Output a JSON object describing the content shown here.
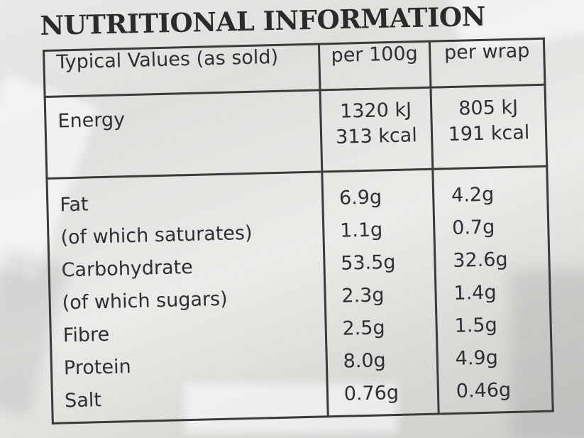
{
  "heading": "NUTRITIONAL INFORMATION",
  "table": {
    "header": {
      "label": "Typical Values (as sold)",
      "per100": "per 100g",
      "perwrap": "per wrap"
    },
    "energy": {
      "label": "Energy",
      "per100_kj": "1320 kJ",
      "per100_kcal": "313 kcal",
      "perwrap_kj": "805 kJ",
      "perwrap_kcal": "191 kcal"
    },
    "rows": [
      {
        "label": "Fat",
        "per100": "6.9g",
        "perwrap": "4.2g"
      },
      {
        "label": "(of which saturates)",
        "per100": "1.1g",
        "perwrap": "0.7g"
      },
      {
        "label": "Carbohydrate",
        "per100": "53.5g",
        "perwrap": "32.6g"
      },
      {
        "label": "(of which sugars)",
        "per100": "2.3g",
        "perwrap": "1.4g"
      },
      {
        "label": "Fibre",
        "per100": "2.5g",
        "perwrap": "1.5g"
      },
      {
        "label": "Protein",
        "per100": "8.0g",
        "perwrap": "4.9g"
      },
      {
        "label": "Salt",
        "per100": "0.76g",
        "perwrap": "0.46g"
      }
    ]
  }
}
